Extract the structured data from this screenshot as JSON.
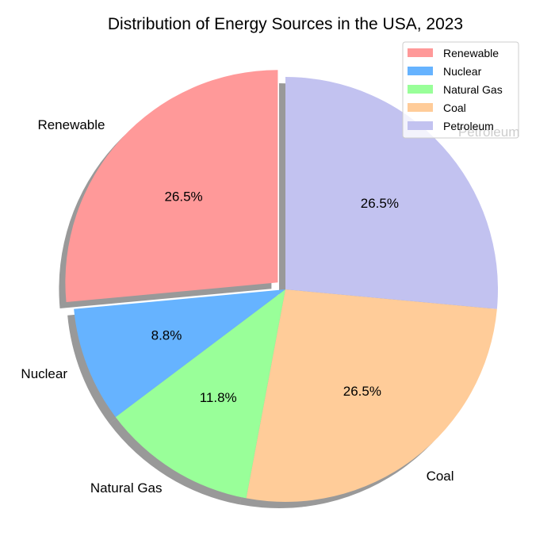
{
  "chart_data": {
    "type": "pie",
    "title": "Distribution of Energy Sources in the USA, 2023",
    "categories": [
      "Renewable",
      "Nuclear",
      "Natural Gas",
      "Coal",
      "Petroleum"
    ],
    "values": [
      26.5,
      8.8,
      11.8,
      26.5,
      26.5
    ],
    "percent_labels": [
      "26.5%",
      "8.8%",
      "11.8%",
      "26.5%",
      "26.5%"
    ],
    "colors": [
      "#ff9999",
      "#66b3ff",
      "#99ff99",
      "#ffcc99",
      "#c2c2f0"
    ],
    "exploded": [
      "Renewable"
    ],
    "shadow": true,
    "start_angle": 90,
    "direction": "counterclockwise",
    "legend": {
      "placement": "top-right",
      "entries": [
        "Renewable",
        "Nuclear",
        "Natural Gas",
        "Coal",
        "Petroleum"
      ]
    }
  }
}
